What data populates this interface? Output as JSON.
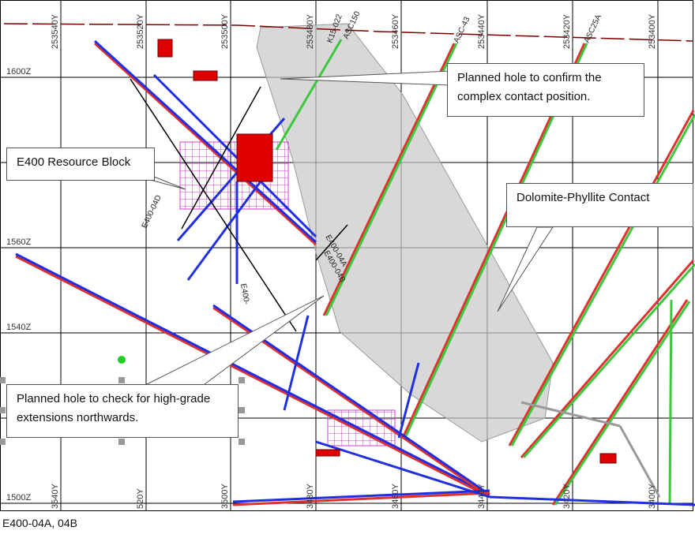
{
  "section": {
    "northings_top": [
      "253540Y",
      "253520Y",
      "253500Y",
      "253480Y",
      "253460Y",
      "253440Y",
      "253420Y",
      "253400Y"
    ],
    "northings_bottom": [
      "3540Y",
      "520Y",
      "3500Y",
      "3480Y",
      "3460Y",
      "3440Y",
      "3420Y",
      "3400Y"
    ],
    "elevations": [
      "1600Z",
      "1560Z",
      "1540Z",
      "1500Z"
    ]
  },
  "holes": [
    "ASC-43",
    "ASC25A",
    "K15-022",
    "ASC150",
    "E400-04D",
    "E400-04A",
    "E400-04B",
    "E400-"
  ],
  "callouts": [
    "Planned hole to confirm the complex contact position.",
    "E400 Resource Block",
    "Dolomite-Phyllite Contact",
    "Planned hole to check for high-grade extensions northwards."
  ],
  "caption": "E400-04A, 04B"
}
